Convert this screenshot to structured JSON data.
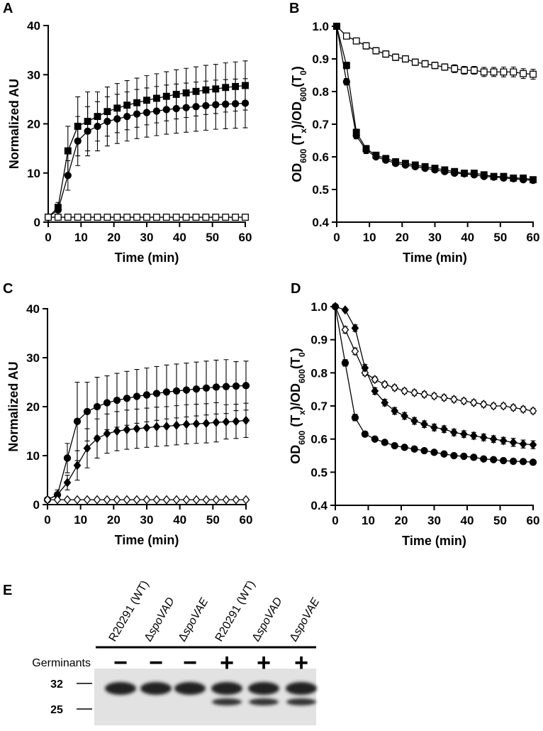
{
  "chart_data": [
    {
      "type": "line",
      "panel": "A",
      "xlabel": "Time (min)",
      "ylabel": "Normalized AU",
      "x": [
        0,
        3,
        6,
        9,
        12,
        15,
        18,
        21,
        24,
        27,
        30,
        33,
        36,
        39,
        42,
        45,
        48,
        51,
        54,
        57,
        60
      ],
      "xlim": [
        0,
        60
      ],
      "ylim": [
        0,
        40
      ],
      "xticks": [
        0,
        10,
        20,
        30,
        40,
        50,
        60
      ],
      "yticks": [
        0,
        10,
        20,
        30,
        40
      ],
      "series": [
        {
          "color": "#000000",
          "marker": "circle",
          "filled": true,
          "values": [
            1,
            2.5,
            9.5,
            16.5,
            18.5,
            19.5,
            20.5,
            21,
            21.5,
            22,
            22.3,
            22.6,
            22.9,
            23.1,
            23.3,
            23.5,
            23.7,
            23.9,
            24,
            24.1,
            24.2
          ],
          "errors": [
            0.5,
            1,
            3,
            5,
            5,
            5,
            5,
            5,
            5,
            5,
            5,
            5,
            5,
            5,
            5,
            5,
            5,
            5,
            5,
            5,
            5
          ]
        },
        {
          "color": "#000000",
          "marker": "square",
          "filled": true,
          "values": [
            1,
            3,
            14.5,
            19.5,
            20.5,
            21.5,
            22.5,
            23.2,
            23.8,
            24.3,
            24.8,
            25.2,
            25.6,
            26,
            26.3,
            26.6,
            26.9,
            27.1,
            27.4,
            27.6,
            27.8
          ],
          "errors": [
            0.5,
            1,
            5,
            6,
            6,
            5,
            5,
            5,
            5,
            5,
            5,
            5,
            5,
            5,
            5,
            5,
            5,
            5,
            5,
            5,
            5
          ]
        },
        {
          "color": "#000000",
          "marker": "square",
          "filled": false,
          "values": [
            1,
            1,
            1,
            1,
            1,
            1,
            1,
            1,
            1,
            1,
            1,
            1,
            1,
            1,
            1,
            1,
            1,
            1,
            1,
            1,
            1
          ],
          "errors": [
            0.3,
            0.3,
            0.3,
            0.3,
            0.3,
            0.3,
            0.3,
            0.3,
            0.3,
            0.3,
            0.3,
            0.3,
            0.3,
            0.3,
            0.3,
            0.3,
            0.3,
            0.3,
            0.3,
            0.3,
            0.3
          ]
        }
      ]
    },
    {
      "type": "line",
      "panel": "B",
      "xlabel": "Time (min)",
      "ylabel": [
        "OD",
        "600",
        " (T",
        "x",
        ")/OD",
        "600",
        "(T",
        "0",
        ")"
      ],
      "x": [
        0,
        3,
        6,
        9,
        12,
        15,
        18,
        21,
        24,
        27,
        30,
        33,
        36,
        39,
        42,
        45,
        48,
        51,
        54,
        57,
        60
      ],
      "xlim": [
        0,
        60
      ],
      "ylim": [
        0.4,
        1
      ],
      "xticks": [
        0,
        10,
        20,
        30,
        40,
        50,
        60
      ],
      "yticks": [
        0.4,
        0.5,
        0.6,
        0.7,
        0.8,
        0.9,
        {
          "value": 1,
          "label": "1.0"
        }
      ],
      "series": [
        {
          "color": "#000000",
          "marker": "square",
          "filled": false,
          "values": [
            1,
            0.97,
            0.955,
            0.94,
            0.925,
            0.915,
            0.905,
            0.9,
            0.89,
            0.885,
            0.88,
            0.875,
            0.87,
            0.865,
            0.865,
            0.86,
            0.86,
            0.86,
            0.86,
            0.855,
            0.853
          ],
          "errors": [
            0,
            0.005,
            0.008,
            0.01,
            0.01,
            0.01,
            0.01,
            0.01,
            0.01,
            0.01,
            0.01,
            0.01,
            0.012,
            0.012,
            0.012,
            0.014,
            0.014,
            0.015,
            0.015,
            0.015,
            0.015
          ]
        },
        {
          "color": "#000000",
          "marker": "circle",
          "filled": true,
          "values": [
            1,
            0.83,
            0.665,
            0.62,
            0.6,
            0.59,
            0.58,
            0.575,
            0.57,
            0.565,
            0.56,
            0.555,
            0.55,
            0.548,
            0.545,
            0.54,
            0.538,
            0.535,
            0.533,
            0.53,
            0.528
          ],
          "errors": [
            0,
            0.01,
            0.01,
            0.01,
            0.005,
            0.005,
            0.005,
            0.005,
            0.005,
            0.005,
            0.005,
            0.005,
            0.005,
            0.005,
            0.005,
            0.005,
            0.005,
            0.005,
            0.005,
            0.005,
            0.005
          ]
        },
        {
          "color": "#000000",
          "marker": "square",
          "filled": true,
          "values": [
            1,
            0.88,
            0.675,
            0.625,
            0.605,
            0.595,
            0.585,
            0.58,
            0.575,
            0.57,
            0.565,
            0.56,
            0.555,
            0.55,
            0.55,
            0.545,
            0.54,
            0.54,
            0.535,
            0.535,
            0.53
          ],
          "errors": [
            0,
            0.01,
            0.01,
            0.01,
            0.005,
            0.005,
            0.005,
            0.005,
            0.005,
            0.005,
            0.005,
            0.005,
            0.005,
            0.005,
            0.005,
            0.005,
            0.005,
            0.005,
            0.005,
            0.005,
            0.005
          ]
        }
      ]
    },
    {
      "type": "line",
      "panel": "C",
      "xlabel": "Time (min)",
      "ylabel": "Normalized AU",
      "x": [
        0,
        3,
        6,
        9,
        12,
        15,
        18,
        21,
        24,
        27,
        30,
        33,
        36,
        39,
        42,
        45,
        48,
        51,
        54,
        57,
        60
      ],
      "xlim": [
        0,
        60
      ],
      "ylim": [
        0,
        40
      ],
      "xticks": [
        0,
        10,
        20,
        30,
        40,
        50,
        60
      ],
      "yticks": [
        0,
        10,
        20,
        30,
        40
      ],
      "series": [
        {
          "color": "#000000",
          "marker": "circle",
          "filled": true,
          "values": [
            1,
            2,
            9.5,
            17,
            19,
            20,
            20.8,
            21.3,
            21.7,
            22.1,
            22.4,
            22.7,
            23,
            23.2,
            23.4,
            23.6,
            23.8,
            24,
            24.1,
            24.2,
            24.3
          ],
          "errors": [
            0.5,
            1,
            3,
            8,
            6,
            6,
            5.5,
            5.5,
            5.5,
            5.5,
            5.5,
            5.5,
            5.5,
            5.5,
            5.5,
            5.5,
            5.5,
            5.5,
            5.5,
            5,
            5
          ]
        },
        {
          "color": "#000000",
          "marker": "diamond",
          "filled": true,
          "values": [
            1,
            2,
            4.5,
            8,
            11.5,
            13.5,
            14.5,
            15,
            15.3,
            15.5,
            15.7,
            15.9,
            16,
            16.2,
            16.4,
            16.5,
            16.6,
            16.8,
            16.9,
            17,
            17.2
          ],
          "errors": [
            0.3,
            0.5,
            1.5,
            3,
            4,
            4,
            4,
            4,
            4,
            4,
            4,
            4,
            4,
            4,
            4,
            4,
            4,
            4,
            3.5,
            3.5,
            3.5
          ]
        },
        {
          "color": "#000000",
          "marker": "diamond",
          "filled": false,
          "values": [
            1,
            1,
            1,
            1,
            1,
            1,
            1,
            1,
            1,
            1,
            1,
            1,
            1,
            1,
            1,
            1,
            1,
            1,
            1,
            1,
            1
          ],
          "errors": [
            0.3,
            0.3,
            0.3,
            0.3,
            0.3,
            0.3,
            0.3,
            0.3,
            0.3,
            0.3,
            0.3,
            0.3,
            0.3,
            0.3,
            0.3,
            0.3,
            0.3,
            0.3,
            0.3,
            0.3,
            0.3
          ]
        }
      ]
    },
    {
      "type": "line",
      "panel": "D",
      "xlabel": "Time (min)",
      "ylabel": [
        "OD",
        "600",
        " (T",
        "x",
        ")/OD",
        "600",
        "(T",
        "0",
        ")"
      ],
      "x": [
        0,
        3,
        6,
        9,
        12,
        15,
        18,
        21,
        24,
        27,
        30,
        33,
        36,
        39,
        42,
        45,
        48,
        51,
        54,
        57,
        60
      ],
      "xlim": [
        0,
        60
      ],
      "ylim": [
        0.4,
        1
      ],
      "xticks": [
        0,
        10,
        20,
        30,
        40,
        50,
        60
      ],
      "yticks": [
        0.4,
        0.5,
        0.6,
        0.7,
        0.8,
        0.9,
        {
          "value": 1,
          "label": "1.0"
        }
      ],
      "series": [
        {
          "color": "#000000",
          "marker": "diamond",
          "filled": false,
          "values": [
            1,
            0.93,
            0.865,
            0.8,
            0.78,
            0.765,
            0.755,
            0.745,
            0.74,
            0.735,
            0.73,
            0.725,
            0.72,
            0.715,
            0.71,
            0.705,
            0.7,
            0.7,
            0.695,
            0.69,
            0.685
          ],
          "errors": [
            0,
            0.01,
            0.01,
            0.008,
            0.008,
            0.008,
            0.008,
            0.008,
            0.008,
            0.008,
            0.008,
            0.008,
            0.008,
            0.008,
            0.008,
            0.008,
            0.008,
            0.008,
            0.008,
            0.008,
            0.008
          ]
        },
        {
          "color": "#000000",
          "marker": "diamond",
          "filled": true,
          "values": [
            1,
            0.99,
            0.935,
            0.815,
            0.745,
            0.71,
            0.685,
            0.67,
            0.655,
            0.645,
            0.635,
            0.63,
            0.62,
            0.615,
            0.61,
            0.605,
            0.6,
            0.595,
            0.59,
            0.585,
            0.583
          ],
          "errors": [
            0,
            0.005,
            0.01,
            0.01,
            0.01,
            0.01,
            0.01,
            0.01,
            0.01,
            0.01,
            0.01,
            0.01,
            0.01,
            0.01,
            0.01,
            0.01,
            0.01,
            0.01,
            0.012,
            0.012,
            0.012
          ]
        },
        {
          "color": "#000000",
          "marker": "circle",
          "filled": true,
          "values": [
            1,
            0.83,
            0.665,
            0.615,
            0.6,
            0.59,
            0.58,
            0.575,
            0.57,
            0.565,
            0.56,
            0.555,
            0.55,
            0.548,
            0.545,
            0.54,
            0.538,
            0.535,
            0.533,
            0.532,
            0.53
          ],
          "errors": [
            0,
            0.01,
            0.01,
            0.008,
            0.005,
            0.005,
            0.005,
            0.005,
            0.005,
            0.005,
            0.005,
            0.005,
            0.005,
            0.005,
            0.005,
            0.005,
            0.005,
            0.005,
            0.005,
            0.005,
            0.005
          ]
        }
      ]
    }
  ],
  "gel": {
    "panel": "E",
    "row_label": "Germinants",
    "lanes": [
      {
        "label": [
          "R20291 (WT)"
        ],
        "germinants": "−"
      },
      {
        "label": [
          "Δ",
          "spoVAD"
        ],
        "germinants": "−"
      },
      {
        "label": [
          "Δ",
          "spoVAE"
        ],
        "germinants": "−"
      },
      {
        "label": [
          "R20291 (WT)"
        ],
        "germinants": "+"
      },
      {
        "label": [
          "Δ",
          "spoVAD"
        ],
        "germinants": "+"
      },
      {
        "label": [
          "Δ",
          "spoVAE"
        ],
        "germinants": "+"
      }
    ],
    "markers": [
      32,
      25
    ]
  }
}
